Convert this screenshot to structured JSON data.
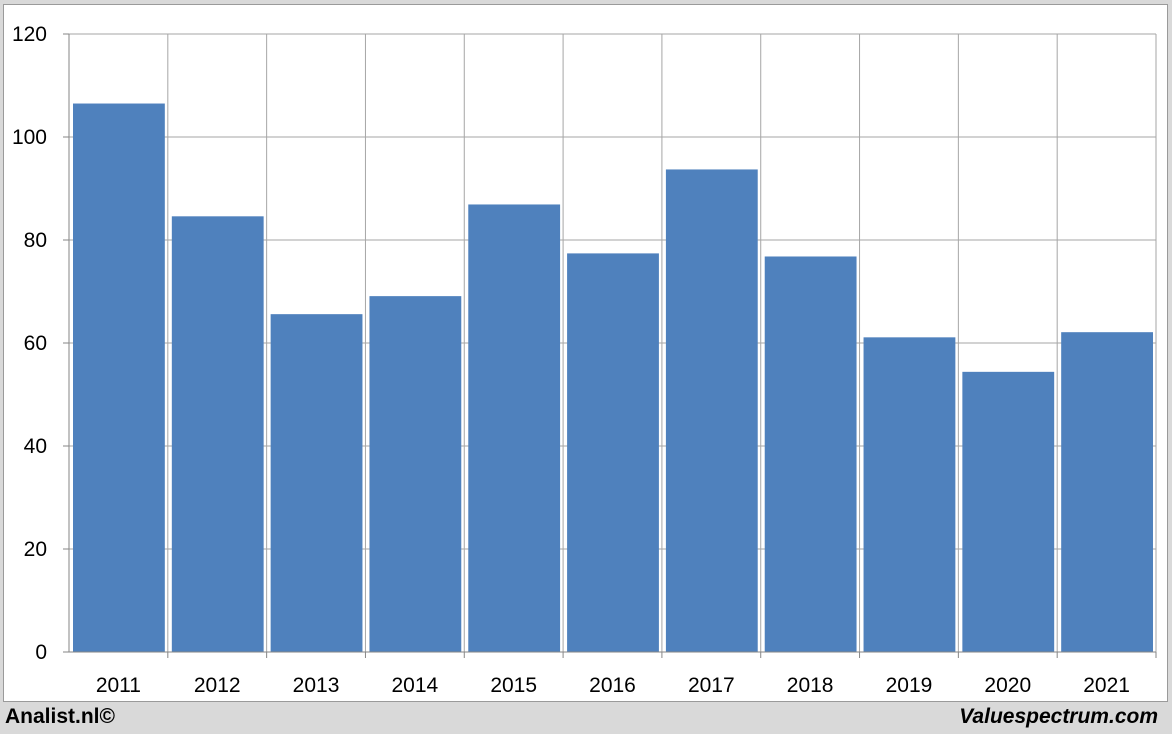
{
  "chart_data": {
    "type": "bar",
    "categories": [
      "2011",
      "2012",
      "2013",
      "2014",
      "2015",
      "2016",
      "2017",
      "2018",
      "2019",
      "2020",
      "2021"
    ],
    "values": [
      106.5,
      84.6,
      65.6,
      69.1,
      86.9,
      77.4,
      93.7,
      76.8,
      61.1,
      54.4,
      62.1
    ],
    "title": "",
    "xlabel": "",
    "ylabel": "",
    "ylim": [
      0,
      120
    ],
    "yticks": [
      "0",
      "20",
      "40",
      "60",
      "80",
      "100",
      "120"
    ],
    "grid": true,
    "bar_color": "#4f81bd",
    "grid_color": "#a6a6a6"
  },
  "footer": {
    "left_text": "Analist.nl©",
    "right_text": "Valuespectrum.com"
  }
}
